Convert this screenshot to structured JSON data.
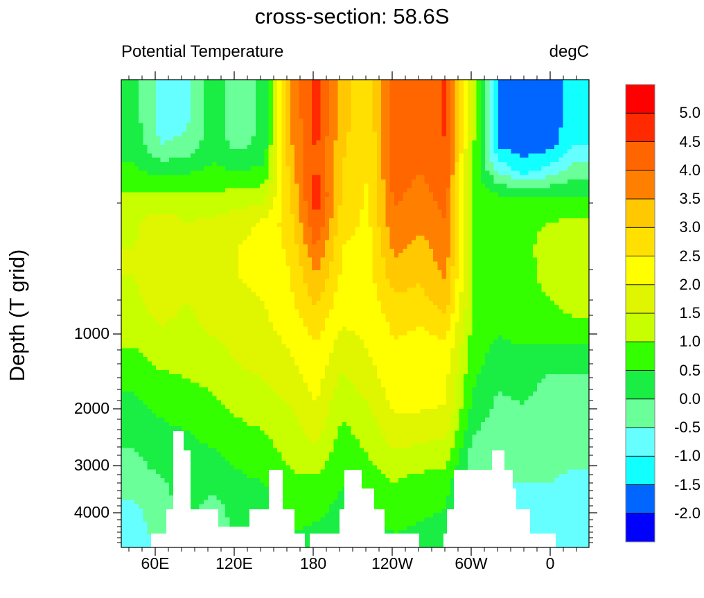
{
  "chart_data": {
    "type": "heatmap",
    "title": "cross-section: 58.6S",
    "left_subtitle": "Potential Temperature",
    "right_subtitle": "degC",
    "ylabel": "Depth (T grid)",
    "xlabel": "",
    "x_tick_labels": [
      "60E",
      "120E",
      "180",
      "120W",
      "60W",
      "0"
    ],
    "y_tick_labels": [
      "1000",
      "2000",
      "3000",
      "4000"
    ],
    "colorbar": {
      "levels": [
        "-2.0",
        "-1.5",
        "-1.0",
        "-0.5",
        "0.0",
        "0.5",
        "1.0",
        "1.5",
        "2.0",
        "2.5",
        "3.0",
        "3.5",
        "4.0",
        "4.5",
        "5.0"
      ],
      "colors": [
        "#0000ff",
        "#0066ff",
        "#11ffff",
        "#66ffff",
        "#6aff99",
        "#1aee44",
        "#33ff00",
        "#c8ff00",
        "#e0f500",
        "#ffff00",
        "#ffe000",
        "#ffc800",
        "#ff8000",
        "#ff6600",
        "#ff2a00",
        "#ff0000"
      ]
    },
    "grid_note_units": "degC, columns west-to-east from ~34E, rows surface-to-bottom",
    "values": [
      [
        0.2,
        -0.7,
        -0.6,
        0.3,
        -0.3,
        0.1,
        3.5,
        4.7,
        3.2,
        2.6,
        4.4,
        4.0,
        4.6,
        1.5,
        -1.7,
        -1.8,
        -1.8,
        -1.2
      ],
      [
        0.2,
        -0.7,
        -0.6,
        0.3,
        -0.3,
        0.1,
        3.5,
        4.7,
        3.2,
        2.6,
        4.4,
        4.1,
        4.6,
        1.4,
        -1.7,
        -1.8,
        -1.8,
        -1.2
      ],
      [
        0.3,
        -0.5,
        -0.4,
        0.3,
        -0.2,
        0.2,
        3.4,
        4.6,
        3.1,
        2.5,
        4.3,
        4.0,
        4.5,
        1.2,
        -1.6,
        -1.8,
        -1.7,
        -1.0
      ],
      [
        0.6,
        0.3,
        0.4,
        0.6,
        0.5,
        0.6,
        3.2,
        4.6,
        3.0,
        2.5,
        4.3,
        4.0,
        4.4,
        0.9,
        -0.6,
        -1.2,
        -0.8,
        -0.2
      ],
      [
        1.1,
        1.1,
        1.2,
        1.1,
        1.2,
        1.3,
        3.0,
        4.8,
        2.9,
        2.4,
        4.1,
        3.8,
        4.2,
        0.9,
        0.6,
        0.5,
        0.6,
        0.5
      ],
      [
        1.4,
        1.8,
        1.5,
        1.6,
        1.8,
        2.1,
        2.8,
        4.5,
        2.7,
        2.4,
        3.9,
        3.6,
        4.0,
        1.0,
        0.7,
        0.9,
        1.0,
        1.1
      ],
      [
        1.5,
        1.9,
        1.6,
        1.7,
        2.0,
        2.2,
        2.6,
        4.0,
        2.5,
        2.3,
        3.6,
        3.3,
        3.8,
        1.0,
        0.7,
        0.8,
        1.3,
        1.2
      ],
      [
        1.5,
        1.9,
        1.6,
        1.7,
        2.0,
        2.1,
        2.5,
        3.5,
        2.4,
        2.3,
        3.3,
        3.1,
        3.6,
        1.0,
        0.7,
        0.9,
        1.1,
        1.3
      ],
      [
        1.4,
        1.7,
        1.5,
        1.6,
        1.9,
        2.0,
        2.4,
        3.1,
        2.2,
        2.2,
        2.9,
        2.8,
        3.3,
        1.0,
        0.7,
        0.9,
        1.0,
        1.2
      ],
      [
        1.3,
        1.5,
        1.4,
        1.6,
        1.8,
        1.9,
        2.2,
        2.7,
        2.0,
        2.1,
        2.6,
        2.5,
        2.7,
        0.9,
        0.6,
        0.8,
        0.8,
        0.9
      ],
      [
        0.9,
        1.2,
        1.2,
        1.3,
        1.6,
        1.7,
        2.0,
        2.4,
        1.7,
        2.0,
        2.4,
        2.3,
        2.3,
        0.8,
        0.3,
        0.4,
        0.3,
        0.3
      ],
      [
        0.6,
        0.9,
        1.0,
        1.1,
        1.4,
        1.5,
        1.8,
        2.2,
        1.4,
        1.8,
        2.3,
        2.2,
        2.1,
        0.6,
        0.1,
        0.2,
        -0.1,
        -0.1
      ],
      [
        0.4,
        0.6,
        0.8,
        0.9,
        1.1,
        1.3,
        1.5,
        2.0,
        1.1,
        1.5,
        2.1,
        2.1,
        2.0,
        0.4,
        -0.1,
        0.0,
        -0.2,
        -0.2
      ],
      [
        0.2,
        0.4,
        0.5,
        0.7,
        0.9,
        1.0,
        1.3,
        1.7,
        0.9,
        1.2,
        1.8,
        1.7,
        1.6,
        0.1,
        -0.3,
        -0.2,
        -0.3,
        -0.3
      ],
      [
        -0.1,
        0.3,
        0.3,
        0.4,
        0.6,
        0.8,
        1.1,
        1.3,
        0.7,
        1.0,
        1.4,
        1.3,
        1.2,
        -0.2,
        -0.4,
        -0.3,
        -0.4,
        -0.4
      ],
      [
        -0.3,
        -0.1,
        0.2,
        0.2,
        0.4,
        0.5,
        0.9,
        0.9,
        0.5,
        0.7,
        1.0,
        0.8,
        0.7,
        -0.3,
        -0.5,
        -0.5,
        -0.5,
        -0.6
      ],
      [
        -0.6,
        -0.2,
        0.2,
        -0.2,
        0.2,
        0.3,
        0.7,
        0.6,
        0.4,
        0.5,
        0.7,
        0.6,
        0.5,
        -0.5,
        -0.6,
        -0.6,
        -0.6,
        -0.7
      ],
      [
        -0.8,
        -0.3,
        0.1,
        -0.3,
        0.1,
        0.2,
        0.5,
        0.4,
        0.3,
        0.3,
        0.5,
        0.4,
        0.3,
        -0.6,
        -0.6,
        -0.7,
        -0.7,
        -0.8
      ]
    ]
  }
}
